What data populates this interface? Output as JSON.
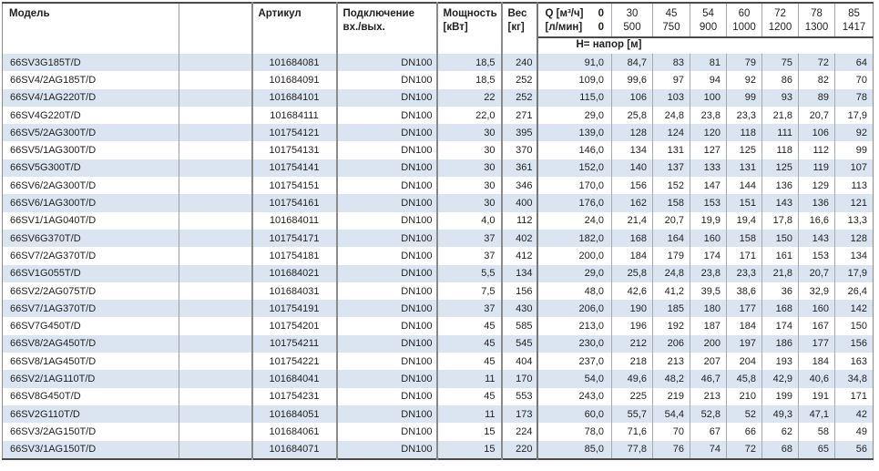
{
  "table": {
    "headers": {
      "model": "Модель",
      "article": "Артикул",
      "connection_l1": "Подключение",
      "connection_l2": "вх./вых.",
      "power_l1": "Мощность",
      "power_l2": "[кВт]",
      "weight_l1": "Вес",
      "weight_l2": "[кг]",
      "q_l1": "Q [м³/ч]",
      "q_l1_value": "0",
      "q_l2": "[л/мин]",
      "q_l2_value": "0",
      "h_label": "Н= напор [м]"
    },
    "flow_columns": [
      {
        "m3h": "30",
        "lmin": "500"
      },
      {
        "m3h": "45",
        "lmin": "750"
      },
      {
        "m3h": "54",
        "lmin": "900"
      },
      {
        "m3h": "60",
        "lmin": "1000"
      },
      {
        "m3h": "72",
        "lmin": "1200"
      },
      {
        "m3h": "78",
        "lmin": "1300"
      },
      {
        "m3h": "85",
        "lmin": "1417"
      }
    ],
    "rows": [
      {
        "model": "66SV3G185T/D",
        "article": "101684081",
        "connection": "DN100",
        "power": "18,5",
        "weight": "240",
        "q0": "91,0",
        "heads": [
          "84,7",
          "83",
          "81",
          "79",
          "75",
          "72",
          "64"
        ]
      },
      {
        "model": "66SV4/2AG185T/D",
        "article": "101684091",
        "connection": "DN100",
        "power": "18,5",
        "weight": "252",
        "q0": "109,0",
        "heads": [
          "99,6",
          "97",
          "94",
          "92",
          "86",
          "82",
          "70"
        ]
      },
      {
        "model": "66SV4/1AG220T/D",
        "article": "101684101",
        "connection": "DN100",
        "power": "22",
        "weight": "252",
        "q0": "115,0",
        "heads": [
          "106",
          "103",
          "100",
          "99",
          "93",
          "89",
          "78"
        ]
      },
      {
        "model": "66SV4G220T/D",
        "article": "101684111",
        "connection": "DN100",
        "power": "22,0",
        "weight": "271",
        "q0": "29,0",
        "heads": [
          "25,8",
          "24,8",
          "23,8",
          "23,3",
          "21,8",
          "20,7",
          "17,9"
        ]
      },
      {
        "model": "66SV5/2AG300T/D",
        "article": "101754121",
        "connection": "DN100",
        "power": "30",
        "weight": "395",
        "q0": "139,0",
        "heads": [
          "128",
          "124",
          "120",
          "118",
          "111",
          "106",
          "92"
        ]
      },
      {
        "model": "66SV5/1AG300T/D",
        "article": "101754131",
        "connection": "DN100",
        "power": "30",
        "weight": "370",
        "q0": "146,0",
        "heads": [
          "134",
          "131",
          "127",
          "125",
          "118",
          "112",
          "99"
        ]
      },
      {
        "model": "66SV5G300T/D",
        "article": "101754141",
        "connection": "DN100",
        "power": "30",
        "weight": "361",
        "q0": "152,0",
        "heads": [
          "140",
          "137",
          "133",
          "131",
          "125",
          "119",
          "107"
        ]
      },
      {
        "model": "66SV6/2AG300T/D",
        "article": "101754151",
        "connection": "DN100",
        "power": "30",
        "weight": "346",
        "q0": "170,0",
        "heads": [
          "156",
          "152",
          "147",
          "144",
          "136",
          "129",
          "113"
        ]
      },
      {
        "model": "66SV6/1AG300T/D",
        "article": "101754161",
        "connection": "DN100",
        "power": "30",
        "weight": "400",
        "q0": "176,0",
        "heads": [
          "162",
          "158",
          "153",
          "151",
          "143",
          "136",
          "121"
        ]
      },
      {
        "model": "66SV1/1AG040T/D",
        "article": "101684011",
        "connection": "DN100",
        "power": "4,0",
        "weight": "112",
        "q0": "24,0",
        "heads": [
          "21,4",
          "20,7",
          "19,9",
          "19,4",
          "17,8",
          "16,6",
          "13,3"
        ]
      },
      {
        "model": "66SV6G370T/D",
        "article": "101754171",
        "connection": "DN100",
        "power": "37",
        "weight": "402",
        "q0": "182,0",
        "heads": [
          "168",
          "164",
          "160",
          "158",
          "150",
          "143",
          "128"
        ]
      },
      {
        "model": "66SV7/2AG370T/D",
        "article": "101754181",
        "connection": "DN100",
        "power": "37",
        "weight": "412",
        "q0": "200,0",
        "heads": [
          "184",
          "179",
          "174",
          "171",
          "161",
          "153",
          "134"
        ]
      },
      {
        "model": "66SV1G055T/D",
        "article": "101684021",
        "connection": "DN100",
        "power": "5,5",
        "weight": "134",
        "q0": "29,0",
        "heads": [
          "25,8",
          "24,8",
          "23,8",
          "23,3",
          "21,8",
          "20,7",
          "17,9"
        ]
      },
      {
        "model": "66SV2/2AG075T/D",
        "article": "101684031",
        "connection": "DN100",
        "power": "7,5",
        "weight": "156",
        "q0": "48,0",
        "heads": [
          "42,6",
          "41,2",
          "39,5",
          "38,6",
          "36",
          "32,9",
          "26,4"
        ]
      },
      {
        "model": "66SV7/1AG370T/D",
        "article": "101754191",
        "connection": "DN100",
        "power": "37",
        "weight": "430",
        "q0": "206,0",
        "heads": [
          "190",
          "185",
          "180",
          "177",
          "168",
          "160",
          "142"
        ]
      },
      {
        "model": "66SV7G450T/D",
        "article": "101754201",
        "connection": "DN100",
        "power": "45",
        "weight": "585",
        "q0": "213,0",
        "heads": [
          "196",
          "192",
          "187",
          "184",
          "174",
          "167",
          "150"
        ]
      },
      {
        "model": "66SV8/2AG450T/D",
        "article": "101754211",
        "connection": "DN100",
        "power": "45",
        "weight": "545",
        "q0": "230,0",
        "heads": [
          "212",
          "206",
          "200",
          "197",
          "186",
          "177",
          "156"
        ]
      },
      {
        "model": "66SV8/1AG450T/D",
        "article": "101754221",
        "connection": "DN100",
        "power": "45",
        "weight": "404",
        "q0": "237,0",
        "heads": [
          "218",
          "213",
          "207",
          "204",
          "193",
          "184",
          "163"
        ]
      },
      {
        "model": "66SV2/1AG110T/D",
        "article": "101684041",
        "connection": "DN100",
        "power": "11",
        "weight": "170",
        "q0": "54,0",
        "heads": [
          "49,6",
          "48,2",
          "46,7",
          "45,8",
          "42,9",
          "40,6",
          "34,8"
        ]
      },
      {
        "model": "66SV8G450T/D",
        "article": "101754231",
        "connection": "DN100",
        "power": "45",
        "weight": "553",
        "q0": "243,0",
        "heads": [
          "225",
          "219",
          "213",
          "210",
          "199",
          "191",
          "171"
        ]
      },
      {
        "model": "66SV2G110T/D",
        "article": "101684051",
        "connection": "DN100",
        "power": "11",
        "weight": "173",
        "q0": "60,0",
        "heads": [
          "55,7",
          "54,4",
          "52,8",
          "52",
          "49,3",
          "47,1",
          "42"
        ]
      },
      {
        "model": "66SV3/2AG150T/D",
        "article": "101684061",
        "connection": "DN100",
        "power": "15",
        "weight": "224",
        "q0": "78,0",
        "heads": [
          "71,6",
          "70",
          "67",
          "66",
          "62",
          "58",
          "49"
        ]
      },
      {
        "model": "66SV3/1AG150T/D",
        "article": "101684071",
        "connection": "DN100",
        "power": "15",
        "weight": "220",
        "q0": "85,0",
        "heads": [
          "77,8",
          "76",
          "74",
          "72",
          "68",
          "65",
          "56"
        ]
      }
    ]
  },
  "colors": {
    "stripe_blue": "#dbe5f1",
    "border_dark": "#4a4a4a",
    "border_gray": "#8a8a8a",
    "border_light": "#a4aab2",
    "text": "#1f1f1f"
  }
}
